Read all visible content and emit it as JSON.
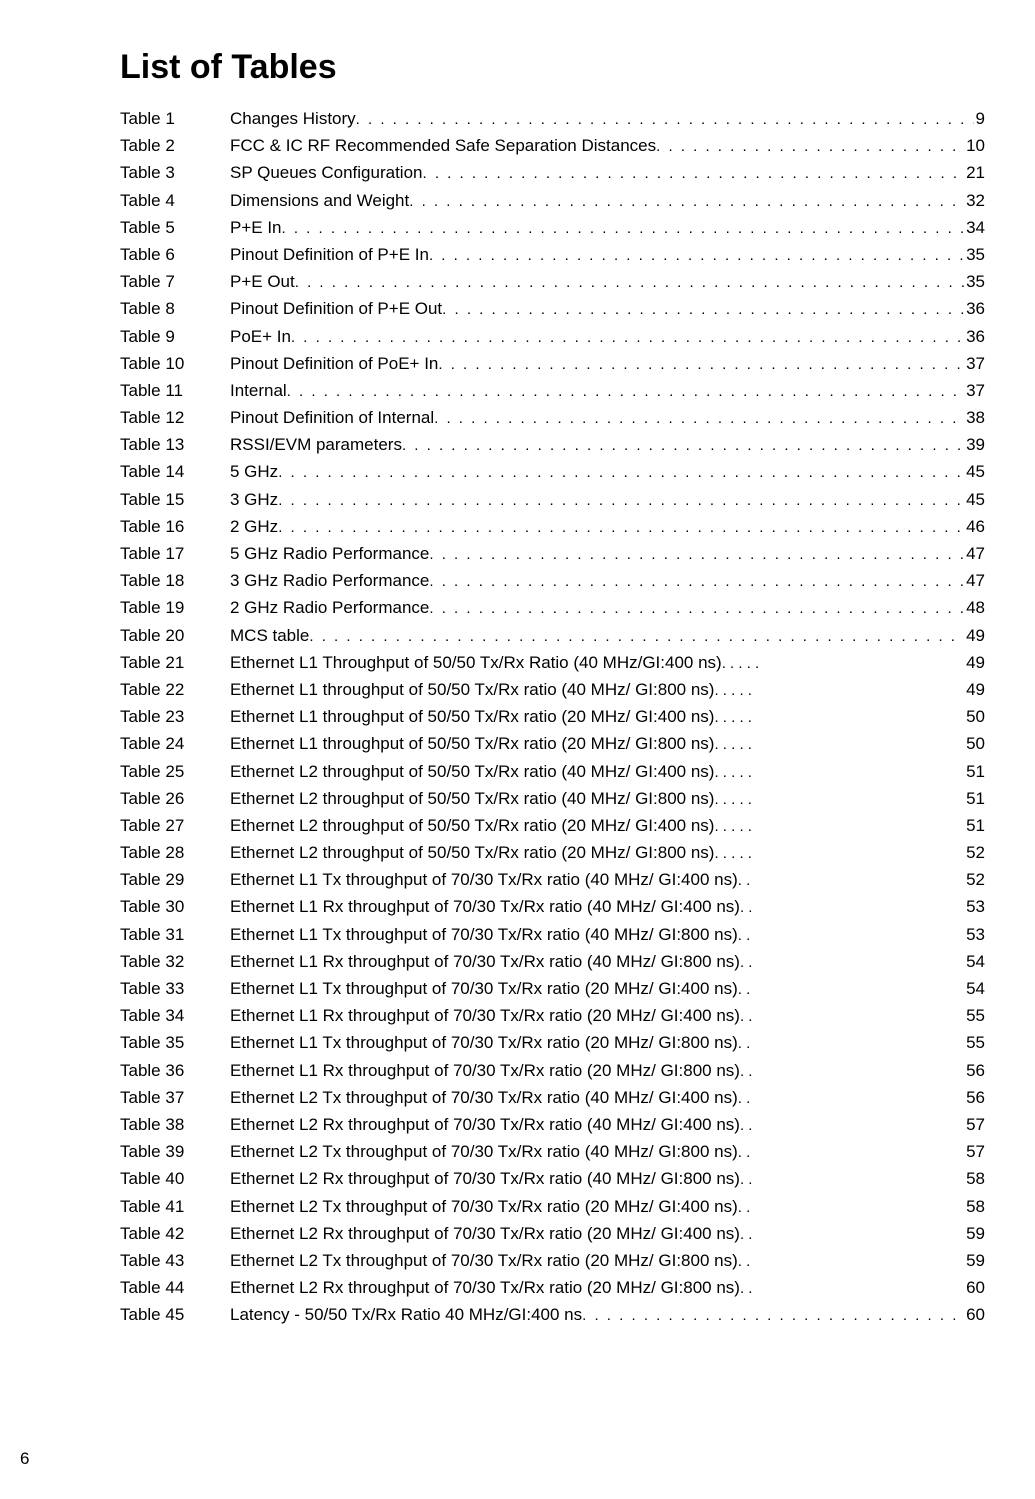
{
  "page_number": "6",
  "title": "List of Tables",
  "entries": [
    {
      "label": "Table 1",
      "desc": "Changes History",
      "page": "9",
      "dots": "long"
    },
    {
      "label": "Table 2",
      "desc": "FCC & IC RF Recommended Safe Separation Distances",
      "page": "10",
      "dots": "long"
    },
    {
      "label": "Table 3",
      "desc": "SP Queues Configuration",
      "page": "21",
      "dots": "long"
    },
    {
      "label": "Table 4",
      "desc": "Dimensions and Weight",
      "page": "32",
      "dots": "long"
    },
    {
      "label": "Table 5",
      "desc": "P+E In",
      "page": "34",
      "dots": "long"
    },
    {
      "label": "Table 6",
      "desc": "Pinout Definition of P+E In",
      "page": "35",
      "dots": "long"
    },
    {
      "label": "Table 7",
      "desc": "P+E Out",
      "page": "35",
      "dots": "long"
    },
    {
      "label": "Table 8",
      "desc": "Pinout Definition of P+E Out",
      "page": "36",
      "dots": "long"
    },
    {
      "label": "Table 9",
      "desc": "PoE+ In",
      "page": "36",
      "dots": "long"
    },
    {
      "label": "Table 10",
      "desc": "Pinout Definition of PoE+ In",
      "page": "37",
      "dots": "long"
    },
    {
      "label": "Table 11",
      "desc": "Internal",
      "page": "37",
      "dots": "long"
    },
    {
      "label": "Table 12",
      "desc": "Pinout Definition of Internal",
      "page": "38",
      "dots": "long"
    },
    {
      "label": "Table 13",
      "desc": "RSSI/EVM parameters",
      "page": "39",
      "dots": "long"
    },
    {
      "label": "Table 14",
      "desc": "5 GHz",
      "page": "45",
      "dots": "long"
    },
    {
      "label": "Table 15",
      "desc": "3 GHz",
      "page": "45",
      "dots": "long"
    },
    {
      "label": "Table 16",
      "desc": "2 GHz",
      "page": "46",
      "dots": "long"
    },
    {
      "label": "Table 17",
      "desc": "5 GHz Radio Performance",
      "page": "47",
      "dots": "long"
    },
    {
      "label": "Table 18",
      "desc": "3 GHz Radio Performance",
      "page": "47",
      "dots": "long"
    },
    {
      "label": "Table 19",
      "desc": "2 GHz Radio Performance",
      "page": "48",
      "dots": "long"
    },
    {
      "label": "Table 20",
      "desc": "MCS table",
      "page": "49",
      "dots": "long"
    },
    {
      "label": "Table 21",
      "desc": "Ethernet L1 Throughput of 50/50 Tx/Rx Ratio (40 MHz/GI:400 ns)",
      "page": "49",
      "dots": "med"
    },
    {
      "label": "Table 22",
      "desc": "Ethernet L1 throughput of 50/50 Tx/Rx ratio (40 MHz/ GI:800 ns)",
      "page": "49",
      "dots": "med"
    },
    {
      "label": "Table 23",
      "desc": "Ethernet L1 throughput of 50/50 Tx/Rx ratio (20 MHz/ GI:400 ns)",
      "page": "50",
      "dots": "med"
    },
    {
      "label": "Table 24",
      "desc": "Ethernet L1 throughput of 50/50 Tx/Rx ratio (20 MHz/ GI:800 ns)",
      "page": "50",
      "dots": "med"
    },
    {
      "label": "Table 25",
      "desc": "Ethernet L2 throughput of 50/50 Tx/Rx ratio (40 MHz/ GI:400 ns)",
      "page": "51",
      "dots": "med"
    },
    {
      "label": "Table 26",
      "desc": "Ethernet L2 throughput of 50/50 Tx/Rx ratio (40 MHz/ GI:800 ns)",
      "page": "51",
      "dots": "med"
    },
    {
      "label": "Table 27",
      "desc": "Ethernet L2 throughput of 50/50 Tx/Rx ratio (20 MHz/ GI:400 ns)",
      "page": "51",
      "dots": "med"
    },
    {
      "label": "Table 28",
      "desc": "Ethernet L2 throughput of 50/50 Tx/Rx ratio (20 MHz/ GI:800 ns)",
      "page": "52",
      "dots": "med"
    },
    {
      "label": "Table 29",
      "desc": "Ethernet L1 Tx throughput of 70/30 Tx/Rx ratio (40 MHz/ GI:400 ns)",
      "page": "52",
      "dots": "short"
    },
    {
      "label": "Table 30",
      "desc": "Ethernet L1 Rx throughput of 70/30 Tx/Rx ratio (40 MHz/ GI:400 ns)",
      "page": "53",
      "dots": "short"
    },
    {
      "label": "Table 31",
      "desc": "Ethernet L1 Tx throughput of 70/30 Tx/Rx ratio (40 MHz/ GI:800 ns)",
      "page": "53",
      "dots": "short"
    },
    {
      "label": "Table 32",
      "desc": "Ethernet L1 Rx throughput of 70/30 Tx/Rx ratio (40 MHz/ GI:800 ns)",
      "page": "54",
      "dots": "short"
    },
    {
      "label": "Table 33",
      "desc": "Ethernet L1 Tx throughput of 70/30 Tx/Rx ratio (20 MHz/ GI:400 ns)",
      "page": "54",
      "dots": "short"
    },
    {
      "label": "Table 34",
      "desc": "Ethernet L1 Rx throughput of 70/30 Tx/Rx ratio (20 MHz/ GI:400 ns)",
      "page": "55",
      "dots": "short"
    },
    {
      "label": "Table 35",
      "desc": "Ethernet L1 Tx throughput of 70/30 Tx/Rx ratio (20 MHz/ GI:800 ns)",
      "page": "55",
      "dots": "short"
    },
    {
      "label": "Table 36",
      "desc": "Ethernet L1 Rx throughput of 70/30 Tx/Rx ratio (20 MHz/ GI:800 ns)",
      "page": "56",
      "dots": "short"
    },
    {
      "label": "Table 37",
      "desc": "Ethernet L2 Tx throughput of 70/30 Tx/Rx ratio (40 MHz/ GI:400 ns)",
      "page": "56",
      "dots": "short"
    },
    {
      "label": "Table 38",
      "desc": "Ethernet L2 Rx throughput of 70/30 Tx/Rx ratio (40 MHz/ GI:400 ns)",
      "page": "57",
      "dots": "short"
    },
    {
      "label": "Table 39",
      "desc": "Ethernet L2 Tx throughput of 70/30 Tx/Rx ratio (40 MHz/ GI:800 ns)",
      "page": "57",
      "dots": "short"
    },
    {
      "label": "Table 40",
      "desc": "Ethernet L2 Rx throughput of 70/30 Tx/Rx ratio (40 MHz/ GI:800 ns)",
      "page": "58",
      "dots": "short"
    },
    {
      "label": "Table 41",
      "desc": "Ethernet L2 Tx throughput of 70/30 Tx/Rx ratio (20 MHz/ GI:400 ns)",
      "page": "58",
      "dots": "short"
    },
    {
      "label": "Table 42",
      "desc": "Ethernet L2 Rx throughput of 70/30 Tx/Rx ratio (20 MHz/ GI:400 ns)",
      "page": "59",
      "dots": "short"
    },
    {
      "label": "Table 43",
      "desc": "Ethernet L2 Tx throughput of 70/30 Tx/Rx ratio (20 MHz/ GI:800 ns)",
      "page": "59",
      "dots": "short"
    },
    {
      "label": "Table 44",
      "desc": "Ethernet L2 Rx throughput of 70/30 Tx/Rx ratio (20 MHz/ GI:800 ns)",
      "page": "60",
      "dots": "short"
    },
    {
      "label": "Table 45",
      "desc": "Latency - 50/50 Tx/Rx Ratio 40 MHz/GI:400 ns",
      "page": "60",
      "dots": "long"
    }
  ]
}
